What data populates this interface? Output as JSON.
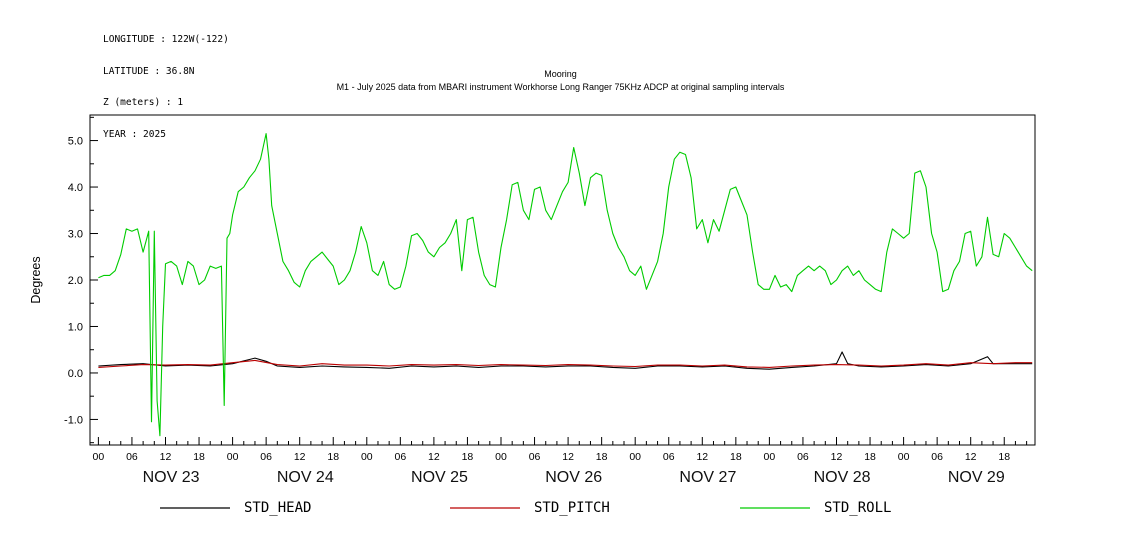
{
  "header": {
    "info_lines": [
      "LONGITUDE : 122W(-122)",
      "LATITUDE : 36.8N",
      "Z (meters) : 1",
      "YEAR : 2025"
    ],
    "title_line1": "Mooring",
    "title_line2": "M1 - July 2025 data from MBARI instrument Workhorse Long Ranger 75KHz ADCP at original sampling intervals"
  },
  "chart_data": {
    "type": "line",
    "title": "Mooring",
    "subtitle": "M1 - July 2025 data from MBARI instrument Workhorse Long Ranger 75KHz ADCP at original sampling intervals",
    "xlabel": "",
    "ylabel": "Degrees",
    "ylim": [
      -1.55,
      5.55
    ],
    "yticks": [
      -1.0,
      0.0,
      1.0,
      2.0,
      3.0,
      4.0,
      5.0
    ],
    "xlim_hours": [
      -1.5,
      167.5
    ],
    "hour_tick_labels": [
      "00",
      "06",
      "12",
      "18"
    ],
    "days": [
      "NOV 23",
      "NOV 24",
      "NOV 25",
      "NOV 26",
      "NOV 27",
      "NOV 28",
      "NOV 29"
    ],
    "grid": false,
    "legend_position": "bottom",
    "legend": [
      {
        "name": "STD_HEAD",
        "color": "#000000"
      },
      {
        "name": "STD_PITCH",
        "color": "#bb0000"
      },
      {
        "name": "STD_ROLL",
        "color": "#00cc00"
      }
    ],
    "series": [
      {
        "name": "STD_HEAD",
        "color": "#000000",
        "x": [
          0,
          4,
          8,
          12,
          16,
          20,
          24,
          28,
          30,
          32,
          36,
          40,
          44,
          48,
          52,
          56,
          60,
          64,
          68,
          72,
          76,
          80,
          84,
          88,
          92,
          96,
          100,
          104,
          108,
          112,
          116,
          120,
          124,
          128,
          132,
          133,
          134,
          136,
          140,
          144,
          148,
          152,
          156,
          159,
          160,
          164,
          167
        ],
        "y": [
          0.15,
          0.18,
          0.2,
          0.15,
          0.17,
          0.15,
          0.2,
          0.32,
          0.25,
          0.15,
          0.12,
          0.15,
          0.13,
          0.12,
          0.1,
          0.15,
          0.13,
          0.15,
          0.12,
          0.15,
          0.15,
          0.13,
          0.15,
          0.15,
          0.12,
          0.1,
          0.15,
          0.15,
          0.13,
          0.15,
          0.1,
          0.08,
          0.12,
          0.15,
          0.2,
          0.45,
          0.2,
          0.15,
          0.13,
          0.15,
          0.18,
          0.15,
          0.2,
          0.35,
          0.2,
          0.2,
          0.2
        ]
      },
      {
        "name": "STD_PITCH",
        "color": "#bb0000",
        "x": [
          0,
          4,
          8,
          12,
          16,
          20,
          24,
          28,
          32,
          36,
          40,
          44,
          48,
          52,
          56,
          60,
          64,
          68,
          72,
          76,
          80,
          84,
          88,
          92,
          96,
          100,
          104,
          108,
          112,
          116,
          120,
          124,
          128,
          132,
          136,
          140,
          144,
          148,
          152,
          156,
          160,
          164,
          167
        ],
        "y": [
          0.12,
          0.15,
          0.18,
          0.17,
          0.18,
          0.17,
          0.22,
          0.27,
          0.18,
          0.15,
          0.2,
          0.17,
          0.17,
          0.15,
          0.18,
          0.17,
          0.18,
          0.16,
          0.18,
          0.17,
          0.16,
          0.18,
          0.17,
          0.15,
          0.14,
          0.17,
          0.17,
          0.15,
          0.17,
          0.13,
          0.12,
          0.15,
          0.17,
          0.18,
          0.17,
          0.15,
          0.17,
          0.2,
          0.17,
          0.22,
          0.2,
          0.22,
          0.22
        ]
      },
      {
        "name": "STD_ROLL",
        "color": "#00cc00",
        "x": [
          0,
          1,
          2,
          3,
          4,
          5,
          6,
          7,
          8,
          9,
          9.5,
          10,
          10.5,
          11,
          11.5,
          12,
          13,
          14,
          15,
          16,
          17,
          18,
          19,
          20,
          21,
          22,
          22.5,
          23,
          23.5,
          24,
          25,
          26,
          27,
          28,
          29,
          30,
          30.5,
          31,
          32,
          33,
          34,
          35,
          36,
          37,
          38,
          39,
          40,
          41,
          42,
          43,
          44,
          45,
          46,
          47,
          48,
          49,
          50,
          51,
          52,
          53,
          54,
          55,
          56,
          57,
          58,
          59,
          60,
          61,
          62,
          63,
          64,
          65,
          66,
          67,
          68,
          69,
          70,
          71,
          72,
          73,
          74,
          75,
          76,
          77,
          78,
          79,
          80,
          81,
          82,
          83,
          84,
          85,
          86,
          87,
          88,
          89,
          90,
          91,
          92,
          93,
          94,
          95,
          96,
          97,
          98,
          99,
          100,
          101,
          102,
          103,
          104,
          105,
          106,
          107,
          108,
          109,
          110,
          111,
          112,
          113,
          114,
          115,
          116,
          117,
          118,
          119,
          120,
          121,
          122,
          123,
          124,
          125,
          126,
          127,
          128,
          129,
          130,
          131,
          132,
          133,
          134,
          135,
          136,
          137,
          138,
          139,
          140,
          141,
          142,
          143,
          144,
          145,
          146,
          147,
          148,
          149,
          150,
          151,
          152,
          153,
          154,
          155,
          156,
          157,
          158,
          159,
          160,
          161,
          162,
          163,
          164,
          165,
          166,
          167
        ],
        "y": [
          2.05,
          2.1,
          2.1,
          2.2,
          2.55,
          3.1,
          3.05,
          3.1,
          2.6,
          3.05,
          -1.05,
          3.05,
          -0.6,
          -1.35,
          1.0,
          2.35,
          2.4,
          2.3,
          1.9,
          2.4,
          2.3,
          1.9,
          2.0,
          2.3,
          2.25,
          2.3,
          -0.7,
          2.9,
          3.0,
          3.4,
          3.9,
          4.0,
          4.2,
          4.35,
          4.6,
          5.15,
          4.6,
          3.6,
          3.0,
          2.4,
          2.2,
          1.95,
          1.85,
          2.2,
          2.4,
          2.5,
          2.6,
          2.45,
          2.3,
          1.9,
          2.0,
          2.2,
          2.6,
          3.15,
          2.8,
          2.2,
          2.1,
          2.4,
          1.9,
          1.8,
          1.85,
          2.3,
          2.95,
          3.0,
          2.85,
          2.6,
          2.5,
          2.7,
          2.8,
          3.0,
          3.3,
          2.2,
          3.3,
          3.35,
          2.6,
          2.1,
          1.9,
          1.85,
          2.7,
          3.3,
          4.05,
          4.1,
          3.5,
          3.3,
          3.95,
          4.0,
          3.5,
          3.3,
          3.6,
          3.9,
          4.1,
          4.85,
          4.3,
          3.6,
          4.2,
          4.3,
          4.25,
          3.5,
          3.0,
          2.7,
          2.5,
          2.2,
          2.1,
          2.3,
          1.8,
          2.1,
          2.4,
          3.0,
          4.0,
          4.6,
          4.75,
          4.7,
          4.2,
          3.1,
          3.3,
          2.8,
          3.3,
          3.05,
          3.5,
          3.95,
          4.0,
          3.7,
          3.4,
          2.6,
          1.9,
          1.8,
          1.8,
          2.1,
          1.85,
          1.9,
          1.75,
          2.1,
          2.2,
          2.3,
          2.2,
          2.3,
          2.2,
          1.9,
          2.0,
          2.2,
          2.3,
          2.1,
          2.2,
          2.0,
          1.9,
          1.8,
          1.75,
          2.6,
          3.1,
          3.0,
          2.9,
          3.0,
          4.3,
          4.35,
          4.0,
          3.0,
          2.6,
          1.75,
          1.8,
          2.2,
          2.4,
          3.0,
          3.05,
          2.3,
          2.5,
          3.35,
          2.55,
          2.5,
          3.0,
          2.9,
          2.7,
          2.5,
          2.3,
          2.2
        ]
      }
    ]
  }
}
